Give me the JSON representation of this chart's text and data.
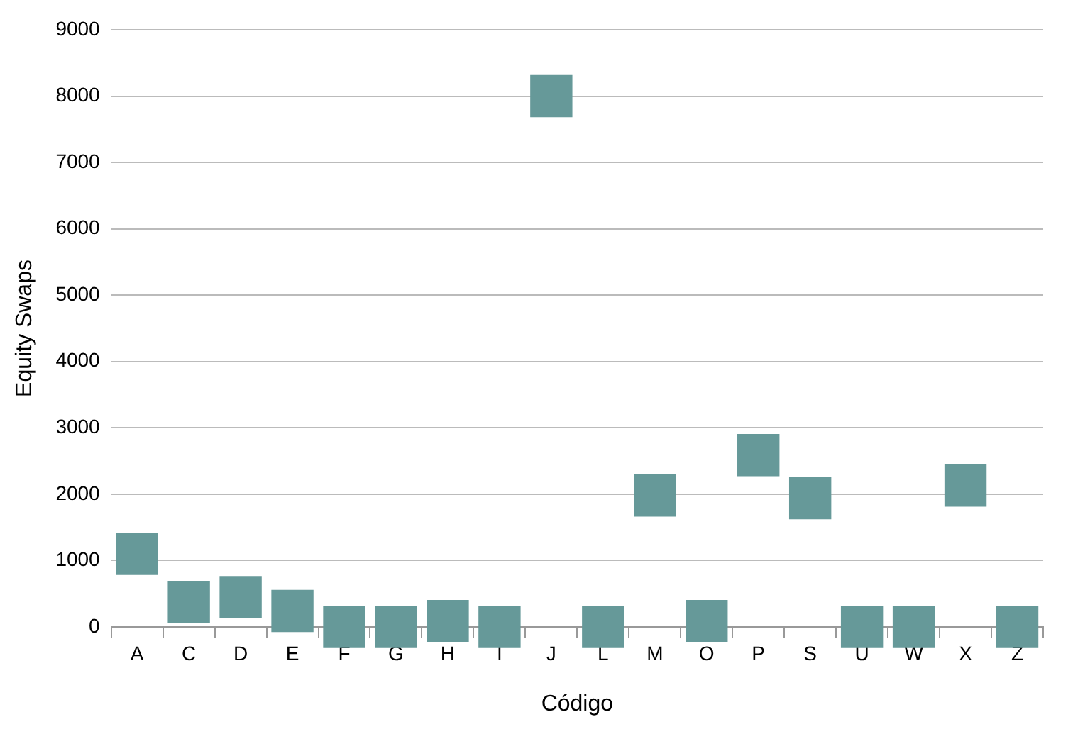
{
  "chart_data": {
    "type": "scatter",
    "xlabel": "Código",
    "ylabel": "Equity Swaps",
    "categories": [
      "A",
      "C",
      "D",
      "E",
      "F",
      "G",
      "H",
      "I",
      "J",
      "L",
      "M",
      "O",
      "P",
      "S",
      "U",
      "W",
      "X",
      "Z"
    ],
    "values": [
      1100,
      370,
      450,
      240,
      0,
      0,
      90,
      0,
      8000,
      0,
      1980,
      90,
      2590,
      1940,
      0,
      0,
      2130,
      0
    ],
    "color": "#669999",
    "marker": "square",
    "ylim": [
      0,
      9000
    ],
    "yticks": [
      0,
      1000,
      2000,
      3000,
      4000,
      5000,
      6000,
      7000,
      8000,
      9000
    ],
    "grid": "y"
  }
}
